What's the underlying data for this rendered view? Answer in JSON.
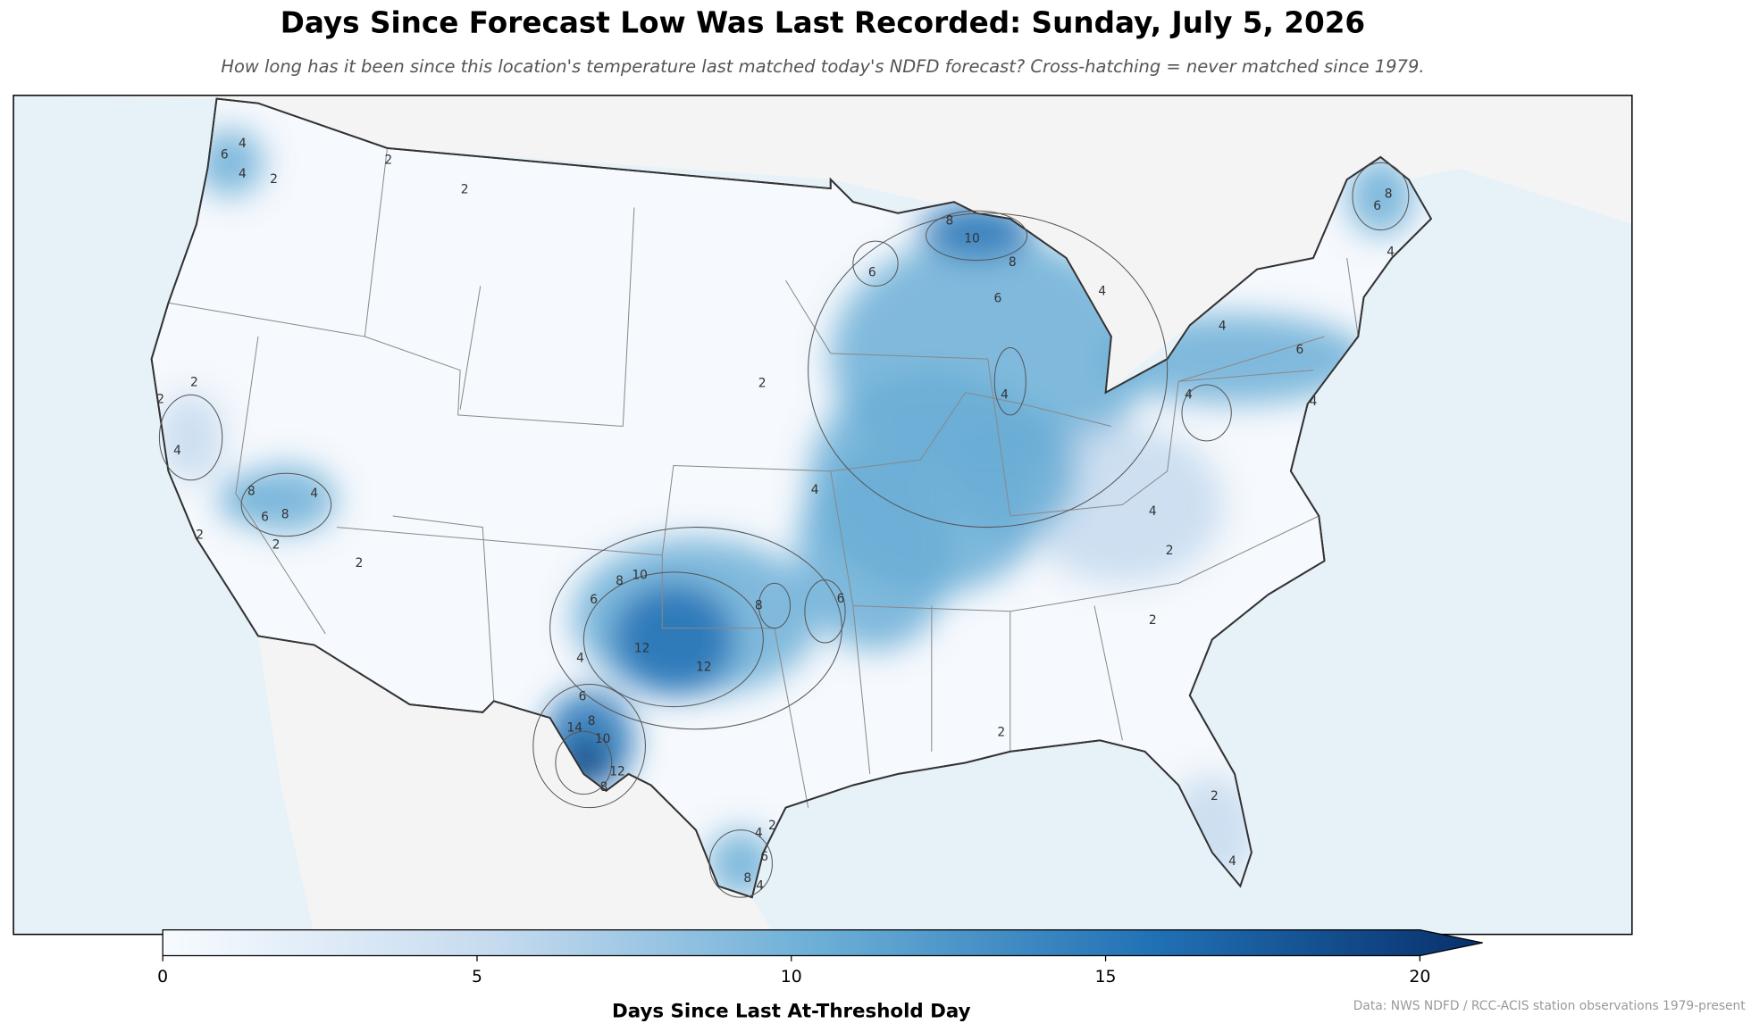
{
  "map": {
    "title": "Days Since Forecast Low Was Last Recorded: Sunday, July 5, 2026",
    "subtitle": "How long has it been since this location's temperature last matched today's NDFD forecast? Cross-hatching = never matched since 1979.",
    "contour_levels": [
      2,
      4,
      6,
      8,
      10,
      12,
      14
    ],
    "colorbar": {
      "label": "Days Since Last At-Threshold Day",
      "lim": [
        0,
        20
      ],
      "ticks": [
        0,
        5,
        10,
        15,
        20
      ],
      "extend": "max",
      "colors": [
        "#f7fbff",
        "#c6dbef",
        "#6baed6",
        "#2171b5",
        "#08306b"
      ]
    },
    "source": "Data: NWS NDFD / RCC-ACIS station observations 1979-present"
  }
}
